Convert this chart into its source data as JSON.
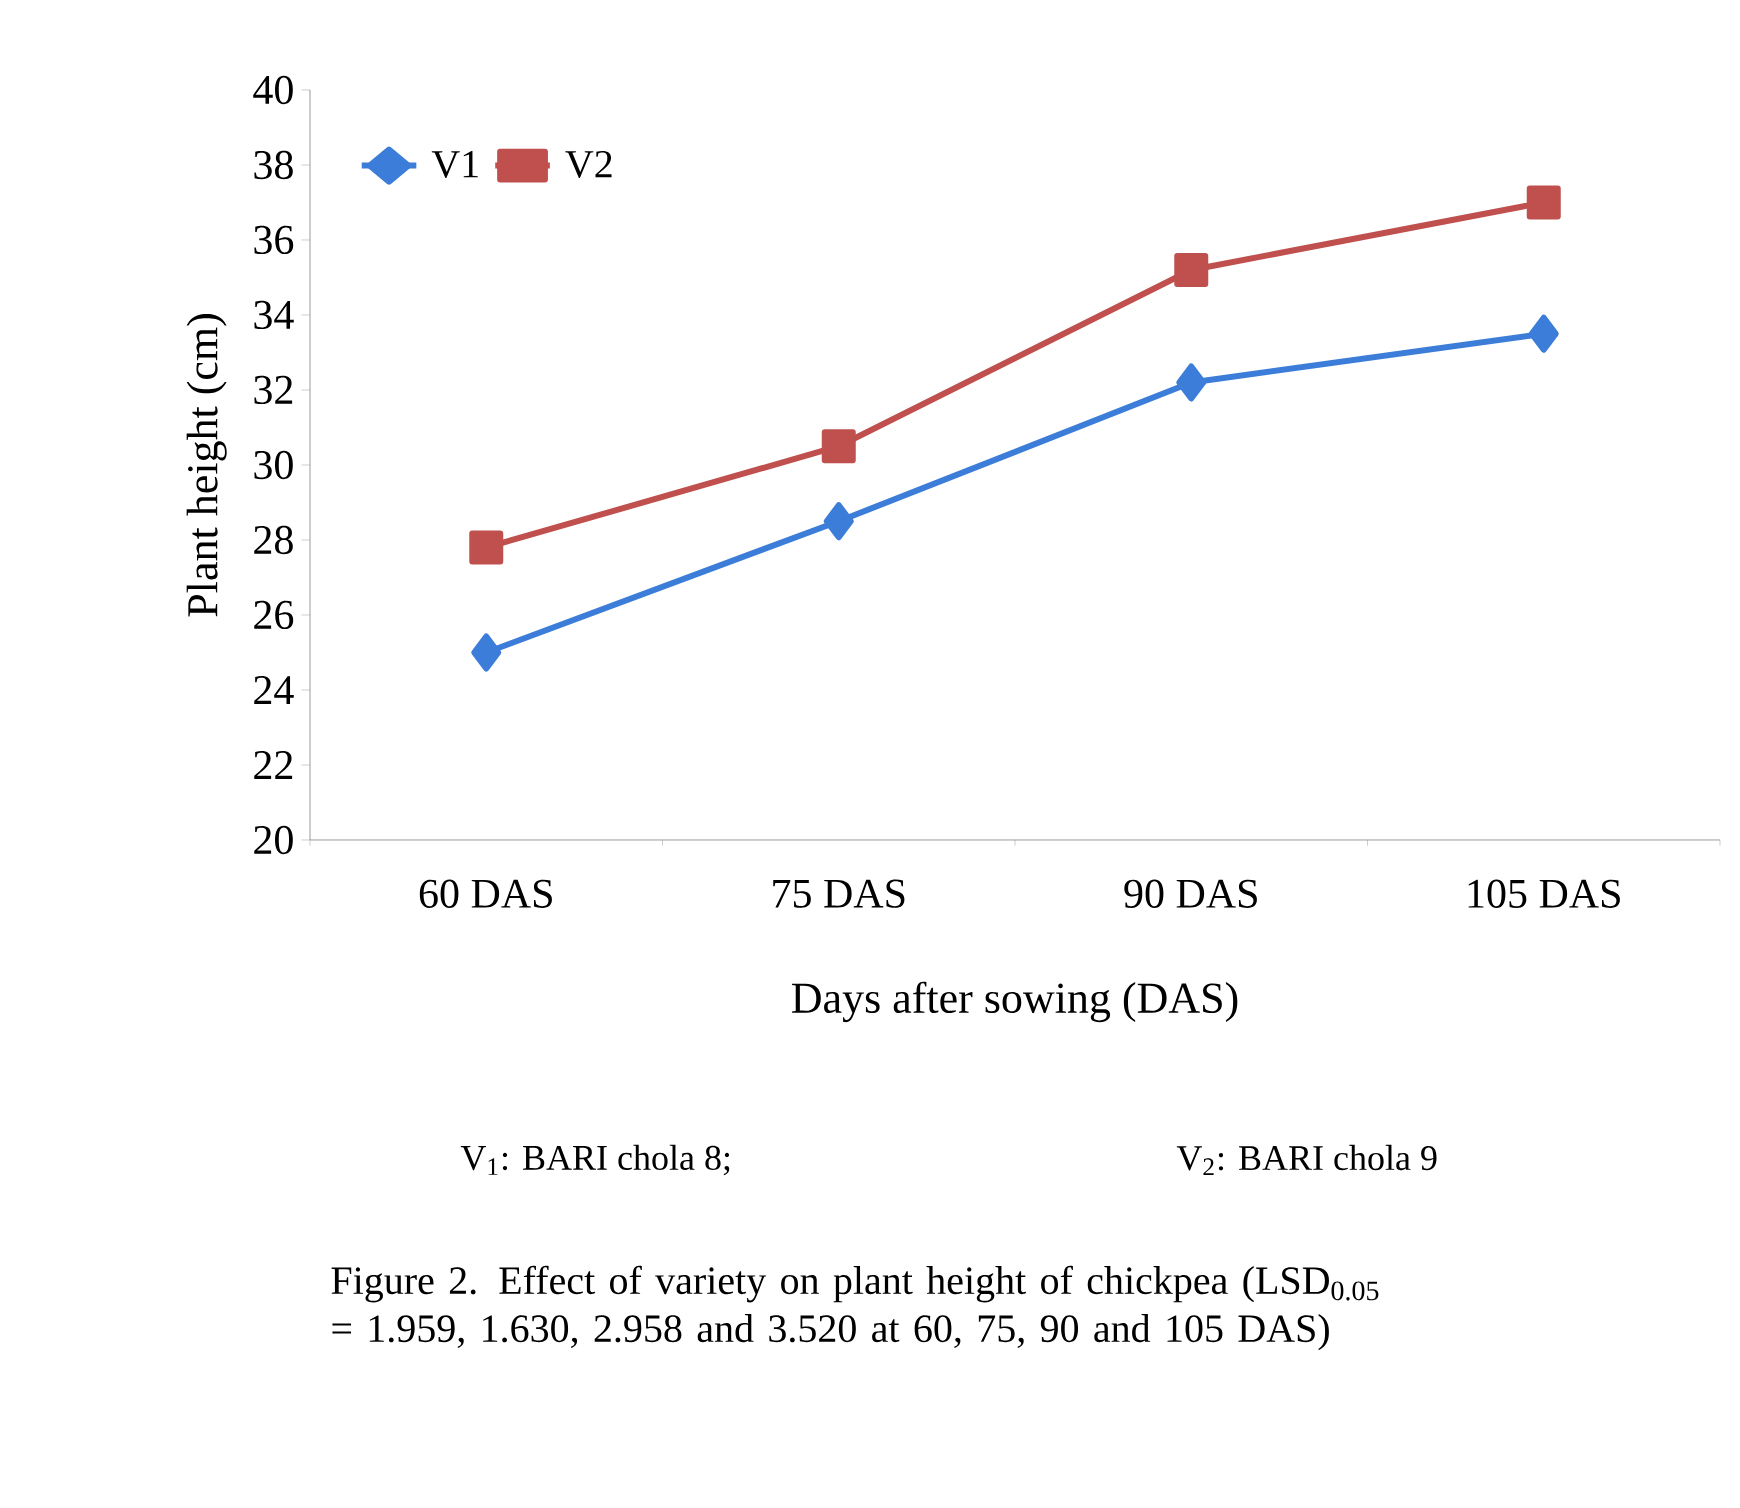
{
  "chart_data": {
    "type": "line",
    "xlabel": "Days after  sowing (DAS)",
    "ylabel": "Plant height (cm)",
    "categories": [
      "60 DAS",
      "75 DAS",
      "90 DAS",
      "105 DAS"
    ],
    "series": [
      {
        "name": "V1",
        "color": "#3b7dd8",
        "marker": "diamond",
        "values": [
          25.0,
          28.5,
          32.2,
          33.5
        ]
      },
      {
        "name": "V2",
        "color": "#c0504d",
        "marker": "square",
        "values": [
          27.8,
          30.5,
          35.2,
          37.0
        ]
      }
    ],
    "ylim": [
      20,
      40
    ],
    "yticks": [
      20,
      22,
      24,
      26,
      28,
      30,
      32,
      34,
      36,
      38,
      40
    ],
    "grid": false,
    "legend": "top left",
    "annotations": [
      "V$_{1}$: BARI chola 8;",
      "V$_{2}$: BARI chola 9",
      "Figure 2. Effect of  variety on plant height of chickpea (LSD$_{0.05}$ = 1.959, 1.630, 2.958 and 3.520 at 60, 75, 90 and 105 DAS)"
    ]
  }
}
